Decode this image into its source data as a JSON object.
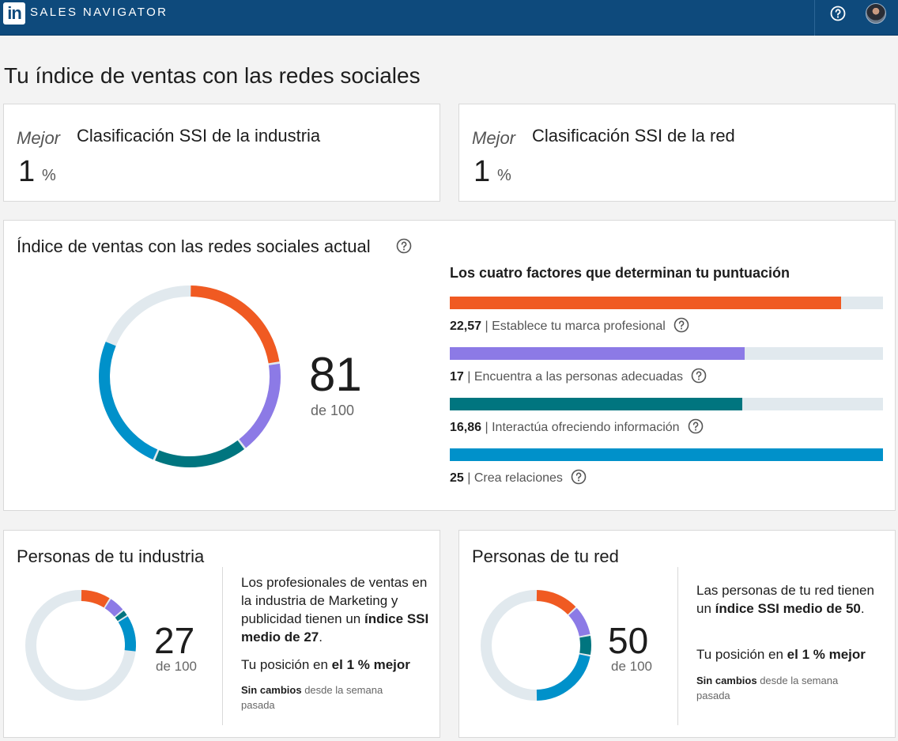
{
  "topbar": {
    "logo_text": "in",
    "brand": "SALES NAVIGATOR",
    "help_icon": "help-circle-icon",
    "avatar": "user-avatar"
  },
  "page": {
    "title": "Tu índice de ventas con las redes sociales"
  },
  "industry_rank": {
    "label": "Mejor",
    "title": "Clasificación SSI de la industria",
    "value": "1",
    "unit": "%"
  },
  "network_rank": {
    "label": "Mejor",
    "title": "Clasificación SSI de la red",
    "value": "1",
    "unit": "%"
  },
  "ssi": {
    "title": "Índice de ventas con las redes sociales actual",
    "score": "81",
    "score_sub": "de 100",
    "factors_heading": "Los cuatro factores que determinan tu puntuación",
    "factors": [
      {
        "value": "22,57",
        "num": 22.57,
        "label": "| Establece tu marca profesional",
        "color": "#f05a22"
      },
      {
        "value": "17",
        "num": 17,
        "label": "| Encuentra a las personas adecuadas",
        "color": "#8c7ae6"
      },
      {
        "value": "16,86",
        "num": 16.86,
        "label": "| Interactúa ofreciendo información",
        "color": "#00757f"
      },
      {
        "value": "25",
        "num": 25,
        "label": "| Crea relaciones",
        "color": "#0091ca"
      }
    ],
    "factor_max": 25,
    "ring_bg": "#e1e9ee"
  },
  "industry_people": {
    "title": "Personas de tu industria",
    "score": "27",
    "score_sub": "de 100",
    "segments": [
      9,
      5,
      2,
      11
    ],
    "text_prefix": "Los profesionales de ventas en la industria de Marketing y publicidad tienen un ",
    "text_bold": "índice SSI medio de 27",
    "text_suffix": ".",
    "position_prefix": "Tu posición en ",
    "position_bold": "el 1 % mejor",
    "note_bold": "Sin cambios",
    "note_rest": " desde la semana pasada"
  },
  "network_people": {
    "title": "Personas de tu red",
    "score": "50",
    "score_sub": "de 100",
    "segments": [
      13,
      9,
      6,
      22
    ],
    "text_prefix": "Las personas de tu red tienen un ",
    "text_bold": "índice SSI medio de 50",
    "text_suffix": ".",
    "position_prefix": "Tu posición en ",
    "position_bold": "el 1 % mejor",
    "note_bold": "Sin cambios",
    "note_rest": " desde la semana pasada"
  }
}
